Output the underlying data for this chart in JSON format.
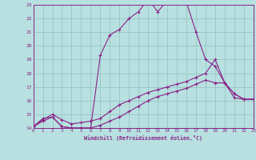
{
  "background_color": "#b8e0e0",
  "grid_color": "#90c0c0",
  "line_color": "#882288",
  "xlabel": "Windchill (Refroidissement éolien,°C)",
  "ylim": [
    14,
    23
  ],
  "xlim": [
    0,
    23
  ],
  "yticks": [
    14,
    15,
    16,
    17,
    18,
    19,
    20,
    21,
    22,
    23
  ],
  "xticks": [
    0,
    1,
    2,
    3,
    4,
    5,
    6,
    7,
    8,
    9,
    10,
    11,
    12,
    13,
    14,
    15,
    16,
    17,
    18,
    19,
    20,
    21,
    22,
    23
  ],
  "line1_x": [
    0,
    1,
    2,
    3,
    4,
    5,
    6,
    7,
    8,
    9,
    10,
    11,
    12,
    13,
    14,
    15,
    16,
    17,
    18,
    19,
    20,
    21,
    22,
    23
  ],
  "line1_y": [
    14.1,
    14.7,
    14.8,
    14.1,
    14.0,
    14.0,
    14.0,
    19.3,
    20.8,
    21.2,
    22.0,
    22.5,
    23.4,
    22.5,
    23.3,
    23.2,
    23.2,
    21.0,
    19.0,
    18.5,
    17.3,
    16.2,
    16.1,
    16.1
  ],
  "line2_x": [
    0,
    1,
    2,
    3,
    4,
    5,
    6,
    7,
    8,
    9,
    10,
    11,
    12,
    13,
    14,
    15,
    16,
    17,
    18,
    19,
    20,
    21,
    22,
    23
  ],
  "line2_y": [
    14.1,
    14.5,
    14.8,
    14.1,
    14.0,
    14.0,
    14.0,
    14.2,
    14.5,
    14.8,
    15.2,
    15.6,
    16.0,
    16.3,
    16.5,
    16.7,
    16.9,
    17.2,
    17.5,
    17.3,
    17.3,
    16.5,
    16.1,
    16.1
  ],
  "line3_x": [
    0,
    1,
    2,
    3,
    4,
    5,
    6,
    7,
    8,
    9,
    10,
    11,
    12,
    13,
    14,
    15,
    16,
    17,
    18,
    19,
    20,
    21,
    22,
    23
  ],
  "line3_y": [
    14.1,
    14.6,
    15.0,
    14.6,
    14.3,
    14.4,
    14.5,
    14.7,
    15.2,
    15.7,
    16.0,
    16.3,
    16.6,
    16.8,
    17.0,
    17.2,
    17.4,
    17.7,
    18.0,
    19.0,
    17.3,
    16.5,
    16.1,
    16.1
  ]
}
